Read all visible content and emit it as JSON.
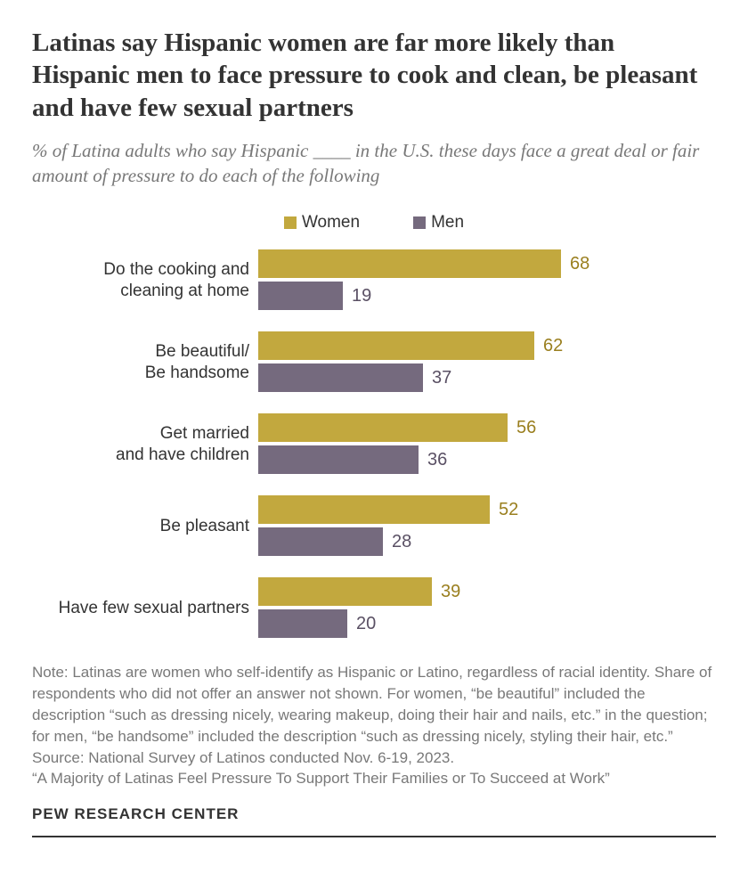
{
  "title": "Latinas say Hispanic women are far more likely than Hispanic men to face pressure to cook and clean, be pleasant and have few sexual partners",
  "subtitle": "% of Latina adults who say Hispanic ____ in the U.S. these days face a great deal or fair amount of pressure to do each of the following",
  "colors": {
    "women": "#c2a83e",
    "men": "#756a7e",
    "title": "#333333",
    "subtitle": "#787878",
    "note": "#787878",
    "val_women": "#9a7f1f",
    "val_men": "#5a5064",
    "background": "#ffffff"
  },
  "fonts": {
    "title_size": 29,
    "subtitle_size": 21,
    "legend_size": 19,
    "label_size": 19,
    "value_size": 20,
    "note_size": 17,
    "footer_size": 17
  },
  "legend": {
    "women": "Women",
    "men": "Men"
  },
  "chart": {
    "max_value": 100,
    "bar_area_width": 500,
    "categories": [
      {
        "label": "Do the cooking and\ncleaning at home",
        "women": 68,
        "men": 19
      },
      {
        "label": "Be beautiful/\nBe handsome",
        "women": 62,
        "men": 37
      },
      {
        "label": "Get married\nand have children",
        "women": 56,
        "men": 36
      },
      {
        "label": "Be pleasant",
        "women": 52,
        "men": 28
      },
      {
        "label": "Have few sexual partners",
        "women": 39,
        "men": 20
      }
    ]
  },
  "note": "Note: Latinas are women who self-identify as Hispanic or Latino, regardless of racial identity. Share of respondents who did not offer an answer not shown. For women, “be beautiful” included the description “such as dressing nicely, wearing makeup, doing their hair and nails, etc.” in the question; for men, “be handsome” included the description “such as dressing nicely, styling their hair, etc.”\nSource: National Survey of Latinos conducted Nov. 6-19, 2023.\n“A Majority of Latinas Feel Pressure To Support Their Families or To Succeed at Work”",
  "footer": "PEW RESEARCH CENTER"
}
